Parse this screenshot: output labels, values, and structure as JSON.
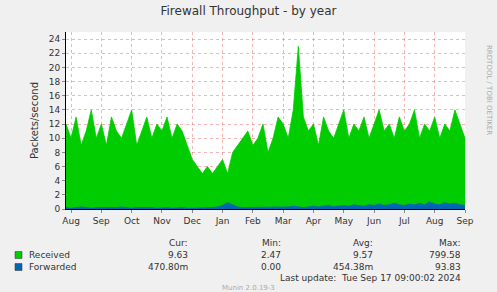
{
  "chart_data": {
    "type": "area",
    "title": "Firewall Throughput - by year",
    "y_label": "Packets/second",
    "categories": [
      null,
      "Aug",
      null,
      null,
      null,
      null,
      null,
      "Sep",
      null,
      null,
      null,
      null,
      null,
      "Oct",
      null,
      null,
      null,
      null,
      null,
      "Nov",
      null,
      null,
      null,
      null,
      null,
      "Dec",
      null,
      null,
      null,
      null,
      null,
      "Jan",
      null,
      null,
      null,
      null,
      null,
      "Feb",
      null,
      null,
      null,
      null,
      null,
      "Mar",
      null,
      null,
      null,
      null,
      null,
      "Apr",
      null,
      null,
      null,
      null,
      null,
      "May",
      null,
      null,
      null,
      null,
      null,
      "Jun",
      null,
      null,
      null,
      null,
      null,
      "Jul",
      null,
      null,
      null,
      null,
      null,
      "Aug",
      null,
      null,
      null,
      null,
      null,
      "Sep"
    ],
    "series": [
      {
        "name": "Received",
        "color": "#00CC00",
        "values": [
          12,
          10,
          13,
          9,
          11,
          14,
          10,
          12,
          9,
          13,
          11,
          10,
          12,
          14,
          9,
          11,
          13,
          10,
          12,
          11,
          13,
          10,
          12,
          11,
          9,
          7,
          6,
          5,
          6,
          5,
          6,
          7,
          5,
          8,
          9,
          10,
          11,
          9,
          10,
          12,
          8,
          10,
          13,
          12,
          10,
          14,
          23,
          13,
          11,
          12,
          9,
          13,
          11,
          10,
          12,
          14,
          10,
          12,
          11,
          13,
          10,
          12,
          14,
          11,
          12,
          10,
          13,
          11,
          12,
          14,
          10,
          12,
          11,
          13,
          10,
          12,
          11,
          14,
          12,
          10
        ],
        "stats": [
          9.63,
          2.47,
          9.57,
          799.58
        ]
      },
      {
        "name": "Forwarded",
        "color": "#0066B3",
        "values": [
          0.2,
          0.1,
          0.2,
          0.3,
          0.2,
          0.1,
          0.2,
          0.2,
          0.1,
          0.2,
          0.2,
          0.3,
          0.2,
          0.1,
          0.2,
          0.2,
          0.3,
          0.2,
          0.1,
          0.2,
          0.2,
          0.1,
          0.2,
          0.2,
          0.1,
          0.1,
          0.1,
          0.2,
          0.1,
          0.2,
          0.3,
          0.5,
          0.9,
          0.6,
          0.3,
          0.2,
          0.2,
          0.3,
          0.2,
          0.2,
          0.3,
          0.2,
          0.3,
          0.2,
          0.3,
          0.4,
          0.3,
          0.2,
          0.3,
          0.4,
          0.3,
          0.4,
          0.5,
          0.3,
          0.4,
          0.5,
          0.4,
          0.6,
          0.5,
          0.4,
          0.6,
          0.5,
          0.7,
          0.5,
          0.6,
          0.8,
          0.6,
          0.5,
          0.7,
          0.6,
          0.8,
          0.6,
          1.0,
          0.7,
          0.6,
          0.9,
          0.7,
          0.8,
          0.6,
          0.5
        ],
        "stats": [
          {
            "value": 0.4708,
            "label": "470.80m"
          },
          {
            "value": 0,
            "label": "0.00"
          },
          {
            "value": 0.45438,
            "label": "454.38m"
          },
          93.83
        ]
      }
    ],
    "stat_columns": [
      "Cur:",
      "Min:",
      "Avg:",
      "Max:"
    ],
    "ylim": [
      0,
      25
    ],
    "yticks": [
      0,
      2,
      4,
      6,
      8,
      10,
      12,
      14,
      16,
      18,
      20,
      22,
      24
    ],
    "grid": true,
    "last_update": "Last update:  Tue Sep 17 09:00:02 2024",
    "footer": "Munin 2.0.19-3",
    "watermark": "RRDTOOL / TOBI OETIKER"
  }
}
